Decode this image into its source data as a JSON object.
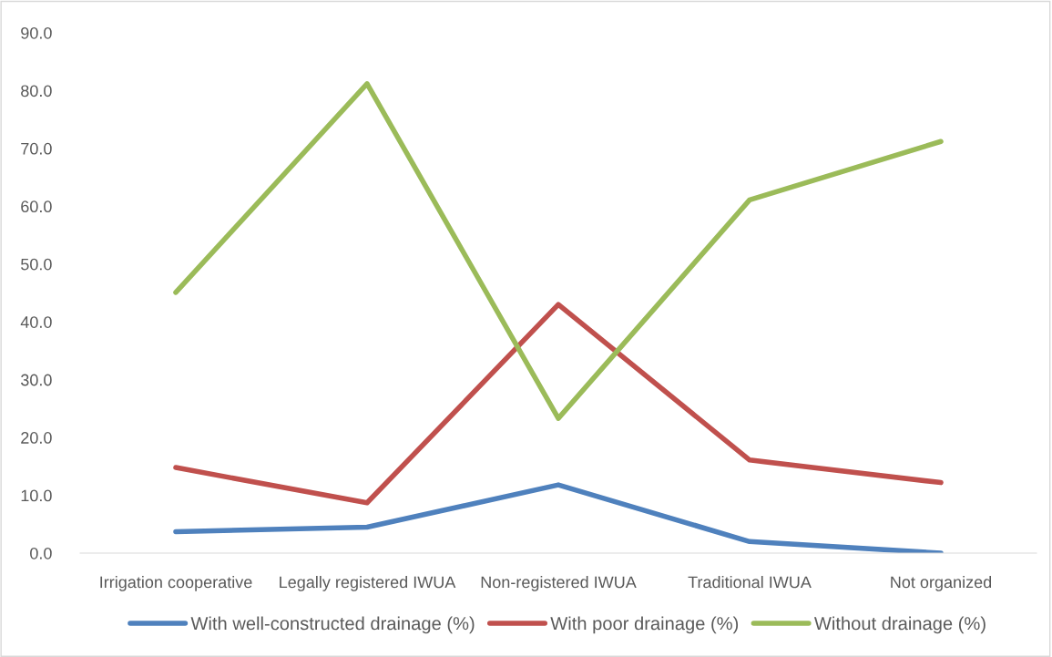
{
  "chart_data": {
    "type": "line",
    "categories": [
      "Irrigation cooperative",
      "Legally registered IWUA",
      "Non-registered IWUA",
      "Traditional IWUA",
      "Not organized"
    ],
    "series": [
      {
        "name": "With well-constructed drainage (%)",
        "color": "#4f81bd",
        "values": [
          3.7,
          4.5,
          11.8,
          2.0,
          0.0
        ]
      },
      {
        "name": "With poor drainage (%)",
        "color": "#c0504d",
        "values": [
          14.8,
          8.7,
          43.0,
          16.1,
          12.2
        ]
      },
      {
        "name": "Without drainage (%)",
        "color": "#9bbb59",
        "values": [
          45.1,
          81.2,
          23.3,
          61.1,
          71.2
        ]
      }
    ],
    "ylim": [
      0,
      90
    ],
    "yticks": [
      {
        "value": 0,
        "label": "0.0"
      },
      {
        "value": 10,
        "label": "10.0"
      },
      {
        "value": 20,
        "label": "20.0"
      },
      {
        "value": 30,
        "label": "30.0"
      },
      {
        "value": 40,
        "label": "40.0"
      },
      {
        "value": 50,
        "label": "50.0"
      },
      {
        "value": 60,
        "label": "60.0"
      },
      {
        "value": 70,
        "label": "70.0"
      },
      {
        "value": 80,
        "label": "80.0"
      },
      {
        "value": 90,
        "label": "90.0"
      }
    ],
    "grid": false,
    "legend": "bottom",
    "marker": "none",
    "line_style": "solid"
  }
}
